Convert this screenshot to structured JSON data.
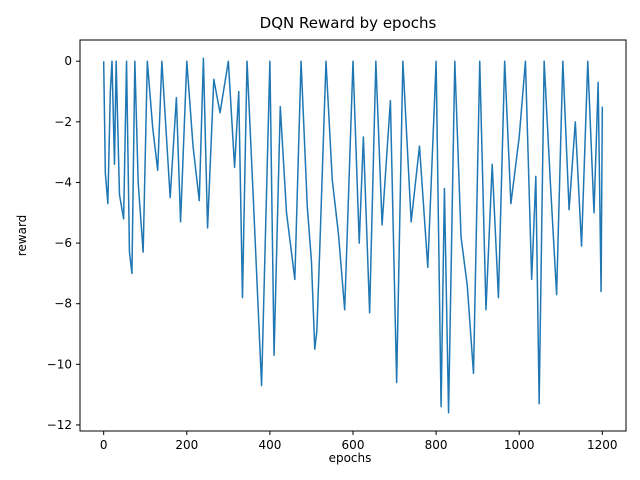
{
  "chart_data": {
    "type": "line",
    "title": "DQN Reward by epochs",
    "xlabel": "epochs",
    "ylabel": "reward",
    "xlim": [
      -57,
      1257
    ],
    "ylim": [
      -12.2,
      0.7
    ],
    "xticks": [
      0,
      200,
      400,
      600,
      800,
      1000,
      1200
    ],
    "yticks": [
      0,
      -2,
      -4,
      -6,
      -8,
      -10,
      -12
    ],
    "grid": false,
    "legend": "none",
    "series": [
      {
        "color": "#1f77b4",
        "x": [
          0,
          4,
          10,
          16,
          20,
          26,
          30,
          38,
          48,
          55,
          62,
          68,
          75,
          83,
          95,
          105,
          118,
          130,
          140,
          160,
          175,
          185,
          200,
          215,
          230,
          240,
          250,
          265,
          280,
          300,
          315,
          325,
          334,
          345,
          360,
          380,
          400,
          410,
          425,
          440,
          460,
          475,
          490,
          500,
          508,
          513,
          520,
          535,
          550,
          565,
          580,
          600,
          615,
          625,
          640,
          655,
          670,
          690,
          705,
          720,
          740,
          760,
          780,
          800,
          812,
          820,
          830,
          845,
          860,
          875,
          890,
          905,
          920,
          935,
          950,
          965,
          980,
          1000,
          1015,
          1030,
          1040,
          1048,
          1060,
          1075,
          1090,
          1105,
          1120,
          1135,
          1150,
          1165,
          1180,
          1190,
          1197,
          1200
        ],
        "values": [
          0.0,
          -3.7,
          -4.7,
          -1.0,
          0.0,
          -3.4,
          0.0,
          -4.4,
          -5.2,
          0.0,
          -6.3,
          -7.0,
          0.0,
          -4.0,
          -6.3,
          0.0,
          -2.2,
          -3.6,
          0.0,
          -4.5,
          -1.2,
          -5.3,
          0.0,
          -2.8,
          -4.6,
          0.1,
          -5.5,
          -0.6,
          -1.7,
          0.0,
          -3.5,
          -1.0,
          -7.8,
          0.0,
          -4.5,
          -10.7,
          0.0,
          -9.7,
          -1.5,
          -5.0,
          -7.2,
          0.0,
          -4.8,
          -6.6,
          -9.5,
          -8.9,
          -6.2,
          0.0,
          -3.9,
          -5.7,
          -8.2,
          0.0,
          -6.0,
          -2.5,
          -8.3,
          0.0,
          -5.4,
          -1.3,
          -10.6,
          0.0,
          -5.3,
          -2.8,
          -6.8,
          0.0,
          -11.4,
          -4.2,
          -11.6,
          0.0,
          -5.8,
          -7.4,
          -10.3,
          0.0,
          -8.2,
          -3.4,
          -7.8,
          0.0,
          -4.7,
          -2.5,
          0.0,
          -7.2,
          -3.8,
          -11.3,
          0.0,
          -4.0,
          -7.7,
          0.0,
          -4.9,
          -2.0,
          -6.1,
          0.0,
          -5.0,
          -0.7,
          -7.6,
          -1.5
        ]
      }
    ]
  }
}
